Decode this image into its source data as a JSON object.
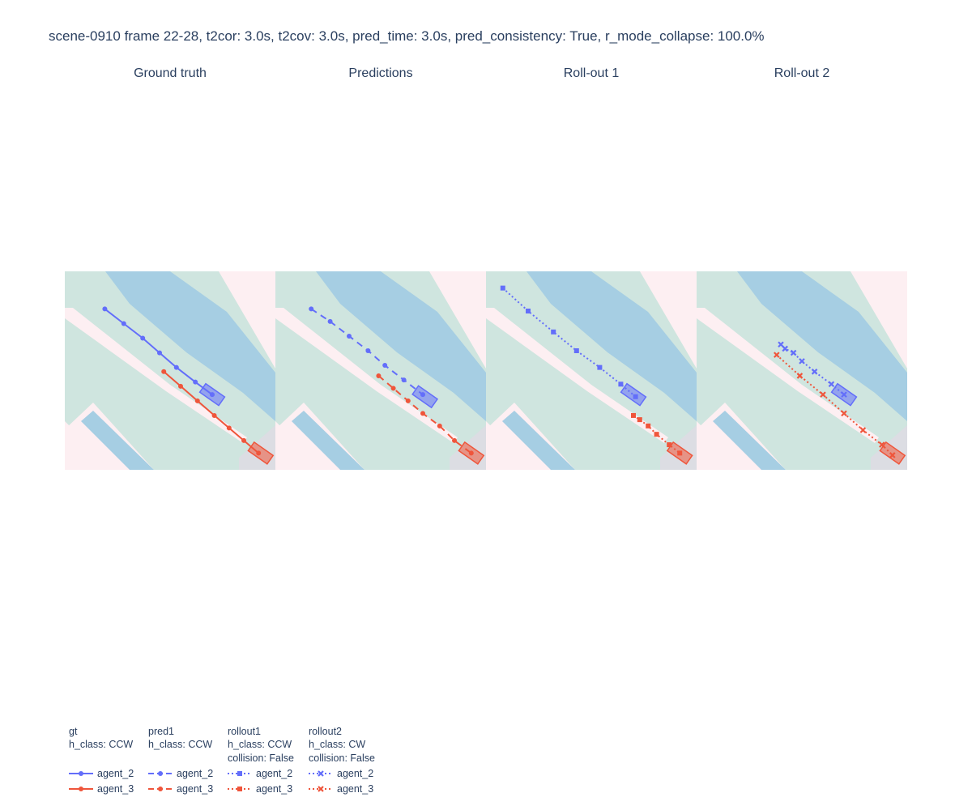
{
  "title": "scene-0910 frame 22-28, t2cor: 3.0s, t2cov: 3.0s, pred_time: 3.0s, pred_consistency: True, r_mode_collapse: 100.0%",
  "colors": {
    "agent_2": "#636efa",
    "agent_3": "#ef553b",
    "lane": "#a6cee3",
    "drivable": "#cfe5df",
    "walkway": "#fdeff2",
    "gray": "#dcdde3"
  },
  "chart_data": [
    {
      "type": "scatter",
      "subplot_title": "Ground truth",
      "legend_group": "gt",
      "group_lines": [
        "gt",
        "h_class: CCW"
      ],
      "x_range": [
        0,
        100
      ],
      "y_range": [
        0,
        95
      ],
      "series": [
        {
          "name": "agent_2",
          "dash": "solid",
          "marker": "circle",
          "x": [
            19,
            28,
            37,
            45,
            53,
            62,
            70
          ],
          "y": [
            77,
            70,
            63,
            56,
            49,
            42,
            36
          ],
          "box": {
            "cx": 70,
            "cy": 36,
            "len": 11,
            "wid": 5,
            "angle": 35
          }
        },
        {
          "name": "agent_3",
          "dash": "solid",
          "marker": "circle",
          "x": [
            47,
            55,
            63,
            71,
            78,
            85,
            92
          ],
          "y": [
            47,
            40,
            33,
            26,
            20,
            14,
            8
          ],
          "box": {
            "cx": 93,
            "cy": 8,
            "len": 11,
            "wid": 5,
            "angle": 35
          }
        }
      ]
    },
    {
      "type": "scatter",
      "subplot_title": "Predictions",
      "legend_group": "pred1",
      "group_lines": [
        "pred1",
        "h_class: CCW"
      ],
      "x_range": [
        0,
        100
      ],
      "y_range": [
        0,
        95
      ],
      "series": [
        {
          "name": "agent_2",
          "dash": "dashed",
          "marker": "circle",
          "x": [
            17,
            26,
            35,
            44,
            52,
            61,
            70
          ],
          "y": [
            77,
            71,
            64,
            57,
            50,
            43,
            36
          ],
          "box": {
            "cx": 71,
            "cy": 35,
            "len": 11,
            "wid": 5,
            "angle": 35
          }
        },
        {
          "name": "agent_3",
          "dash": "dashed",
          "marker": "circle",
          "x": [
            49,
            56,
            63,
            70,
            78,
            85,
            93
          ],
          "y": [
            45,
            39,
            33,
            27,
            21,
            14,
            8
          ],
          "box": {
            "cx": 93,
            "cy": 8,
            "len": 11,
            "wid": 5,
            "angle": 35
          }
        }
      ]
    },
    {
      "type": "scatter",
      "subplot_title": "Roll-out 1",
      "legend_group": "rollout1",
      "group_lines": [
        "rollout1",
        "h_class: CCW",
        "collision: False"
      ],
      "x_range": [
        0,
        100
      ],
      "y_range": [
        0,
        95
      ],
      "series": [
        {
          "name": "agent_2",
          "dash": "dotted",
          "marker": "square",
          "x": [
            8,
            20,
            32,
            43,
            54,
            64,
            71
          ],
          "y": [
            87,
            76,
            66,
            57,
            49,
            41,
            35
          ],
          "box": {
            "cx": 70,
            "cy": 36,
            "len": 11,
            "wid": 5,
            "angle": 35
          }
        },
        {
          "name": "agent_3",
          "dash": "dotted",
          "marker": "square",
          "x": [
            70,
            73,
            77,
            81,
            87,
            92
          ],
          "y": [
            26,
            24,
            21,
            17,
            12,
            8
          ],
          "box": {
            "cx": 92,
            "cy": 8,
            "len": 11,
            "wid": 5,
            "angle": 35
          }
        }
      ]
    },
    {
      "type": "scatter",
      "subplot_title": "Roll-out 2",
      "legend_group": "rollout2",
      "group_lines": [
        "rollout2",
        "h_class: CW",
        "collision: False"
      ],
      "x_range": [
        0,
        100
      ],
      "y_range": [
        0,
        95
      ],
      "series": [
        {
          "name": "agent_2",
          "dash": "dotted",
          "marker": "x",
          "x": [
            40,
            42,
            46,
            50,
            56,
            64,
            70
          ],
          "y": [
            60,
            58,
            56,
            52,
            47,
            41,
            36
          ],
          "box": {
            "cx": 70,
            "cy": 36,
            "len": 11,
            "wid": 5,
            "angle": 35
          }
        },
        {
          "name": "agent_3",
          "dash": "dotted",
          "marker": "x",
          "x": [
            38,
            49,
            60,
            70,
            79,
            88,
            93
          ],
          "y": [
            55,
            45,
            36,
            27,
            19,
            12,
            7
          ],
          "box": {
            "cx": 93,
            "cy": 8,
            "len": 11,
            "wid": 5,
            "angle": 35
          }
        }
      ]
    }
  ]
}
